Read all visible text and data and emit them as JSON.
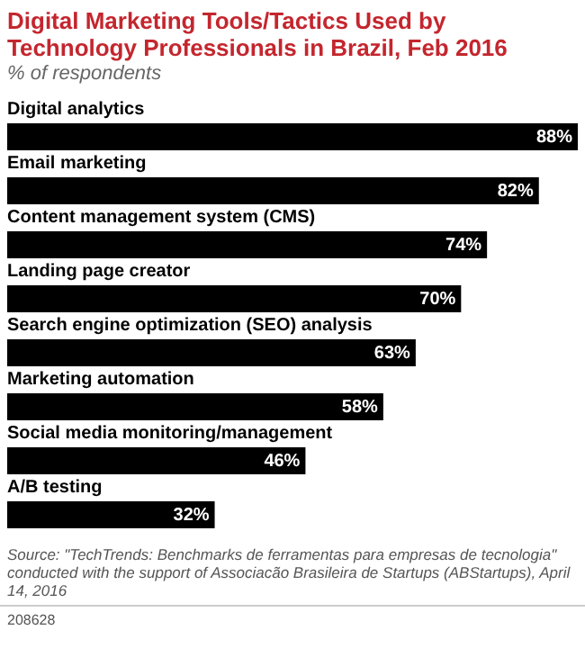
{
  "chart_data": {
    "type": "bar",
    "orientation": "horizontal",
    "title": "Digital Marketing Tools/Tactics Used by Technology Professionals in Brazil, Feb 2016",
    "subtitle": "% of respondents",
    "categories": [
      "Digital analytics",
      "Email marketing",
      "Content management system (CMS)",
      "Landing page creator",
      "Search engine optimization (SEO) analysis",
      "Marketing automation",
      "Social media monitoring/management",
      "A/B testing"
    ],
    "values": [
      88,
      82,
      74,
      70,
      63,
      58,
      46,
      32
    ],
    "value_labels": [
      "88%",
      "82%",
      "74%",
      "70%",
      "63%",
      "58%",
      "46%",
      "32%"
    ],
    "color": "#000000",
    "annotations": [
      "Source: \"TechTrends: Benchmarks de ferramentas para empresas de tecnologia\" conducted with the support of Associacão Brasileira de Startups (ABStartups), April 14, 2016",
      "208628"
    ]
  }
}
